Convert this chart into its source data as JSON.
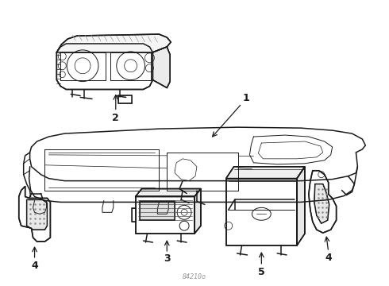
{
  "background_color": "#ffffff",
  "line_color": "#1a1a1a",
  "fig_width": 4.9,
  "fig_height": 3.6,
  "dpi": 100,
  "watermark": "84210o",
  "part1_label": "1",
  "part2_label": "2",
  "part3_label": "3",
  "part4_label": "4",
  "part5_label": "5"
}
